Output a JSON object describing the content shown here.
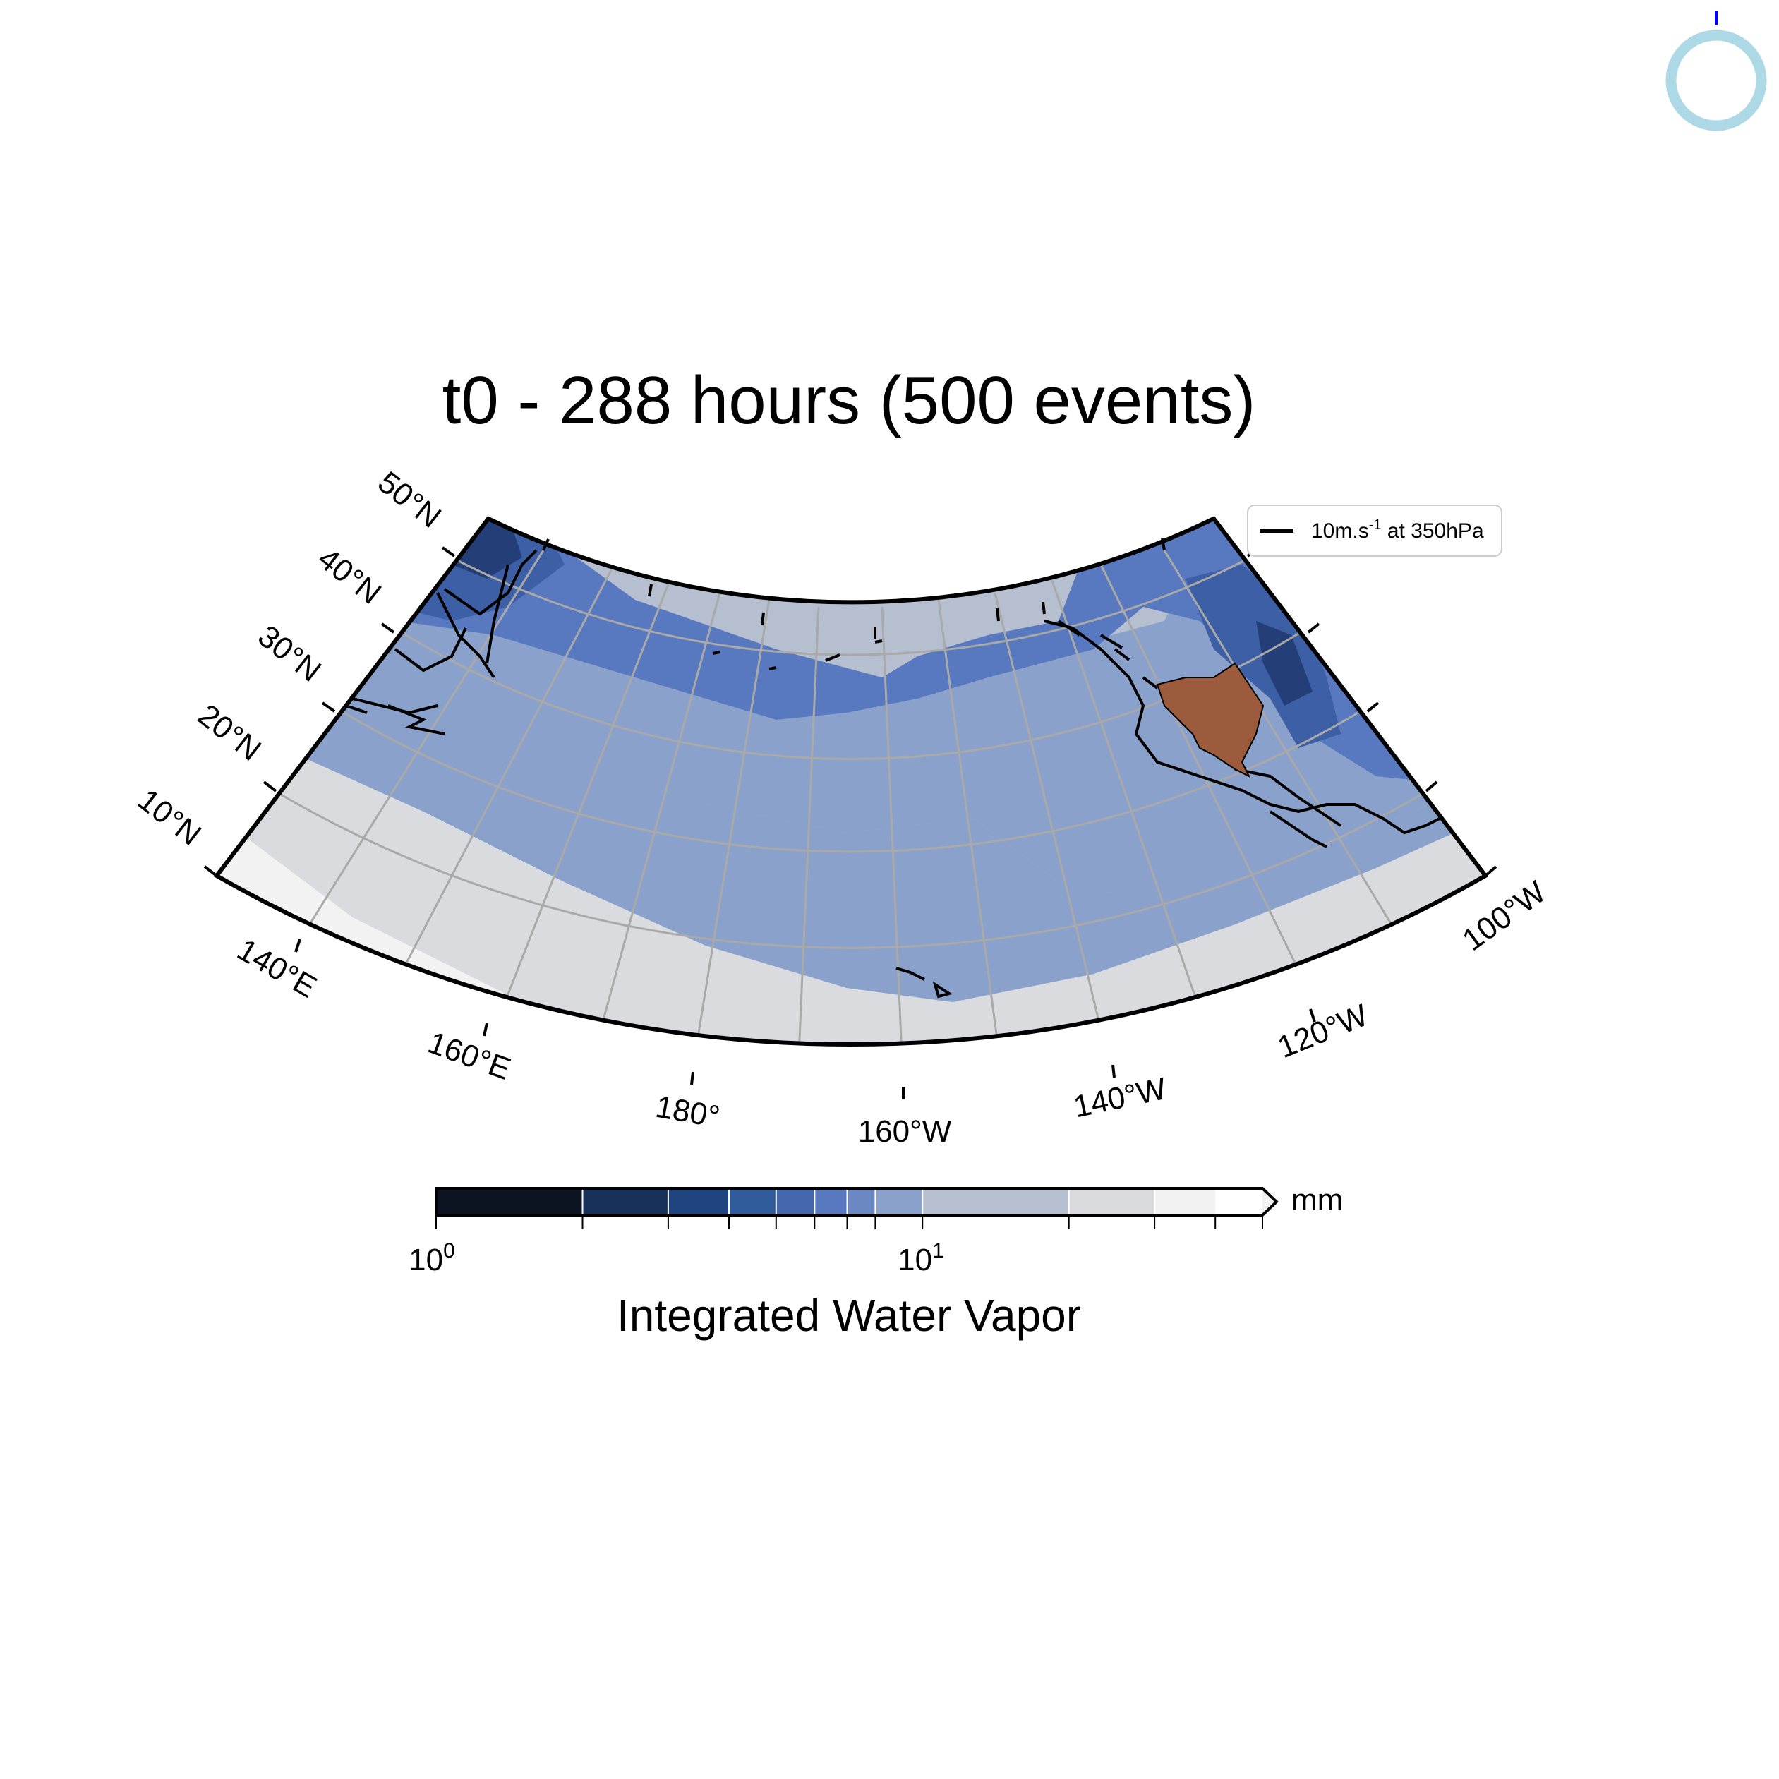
{
  "title": "t0 - 288 hours (500 events)",
  "legend": {
    "label_main": "10m.s",
    "label_sup": "-1",
    "label_tail": " at 350hPa"
  },
  "lat_labels": [
    "10°N",
    "20°N",
    "30°N",
    "40°N",
    "50°N"
  ],
  "lon_labels": [
    "140°E",
    "160°E",
    "180°",
    "160°W",
    "140°W",
    "120°W",
    "100°W"
  ],
  "colorbar": {
    "title": "Integrated Water Vapor",
    "unit": "mm",
    "tick_base": "10",
    "tick_exponents": [
      "0",
      "1"
    ],
    "scale": "log",
    "boundaries": [
      1,
      2,
      3,
      4,
      5,
      6,
      7,
      8,
      10,
      20,
      30,
      40,
      50
    ],
    "colors": [
      "#0c1422",
      "#16305a",
      "#1f4580",
      "#2f5b9a",
      "#4466ad",
      "#5878bf",
      "#6c88c4",
      "#8aa1cb",
      "#b5bfcf",
      "#d9dbdf",
      "#f2f2f2"
    ],
    "extend": "max"
  },
  "map": {
    "projection": "conic",
    "extent": {
      "lon_min": 130,
      "lon_max": 260,
      "lat_min": 10,
      "lat_max": 53
    },
    "highlight_region": "US West Coast",
    "highlight_color": "#9c5b3c",
    "colors": {
      "dark": "#4a6aae",
      "mid": "#8aa1cb",
      "light": "#b5bfcf",
      "lighter": "#d9dbdf",
      "lightest": "#f2f2f2"
    }
  },
  "progress_indicator": {
    "ring_color": "#add8e6",
    "marker_color": "#0000ff"
  }
}
